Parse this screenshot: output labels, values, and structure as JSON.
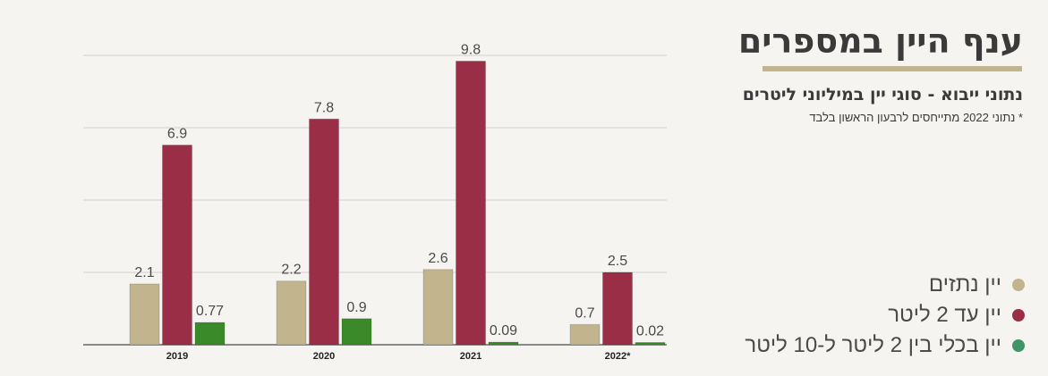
{
  "header": {
    "title": "ענף היין במספרים",
    "subtitle": "נתוני ייבוא - סוגי יין במיליוני ליטרים",
    "note": "* נתוני 2022 מתייחסים לרבעון הראשון בלבד"
  },
  "colors": {
    "background": "#f5f4f0",
    "accent_rule": "#c2b48d",
    "gridline": "#d3d1cb"
  },
  "legend": [
    {
      "label": "יין נתזים",
      "color": "#c2b48d"
    },
    {
      "label": "יין עד 2 ליטר",
      "color": "#9a2e46"
    },
    {
      "label": "יין בכלי בין 2 ליטר ל-10 ליטר",
      "color": "#3f9468"
    }
  ],
  "chart_data": {
    "type": "bar",
    "categories": [
      "2019",
      "2020",
      "2021",
      "2022*"
    ],
    "series": [
      {
        "name": "יין נתזים",
        "color": "#c2b48d",
        "values": [
          2.1,
          2.2,
          2.6,
          0.7
        ]
      },
      {
        "name": "יין עד 2 ליטר",
        "color": "#9a2e46",
        "values": [
          6.9,
          7.8,
          9.8,
          2.5
        ]
      },
      {
        "name": "יין בכלי בין 2 ליטר ל-10 ליטר",
        "color": "#3a8a2a",
        "values": [
          0.77,
          0.9,
          0.09,
          0.02
        ]
      }
    ],
    "value_labels": [
      [
        "2.1",
        "2.2",
        "2.6",
        "0.7"
      ],
      [
        "6.9",
        "7.8",
        "9.8",
        "2.5"
      ],
      [
        "0.77",
        "0.9",
        "0.09",
        "0.02"
      ]
    ],
    "ylim": [
      0,
      10
    ],
    "gridlines": [
      0,
      2.5,
      5,
      7.5,
      10
    ],
    "grid": true,
    "legend_position": "right"
  }
}
